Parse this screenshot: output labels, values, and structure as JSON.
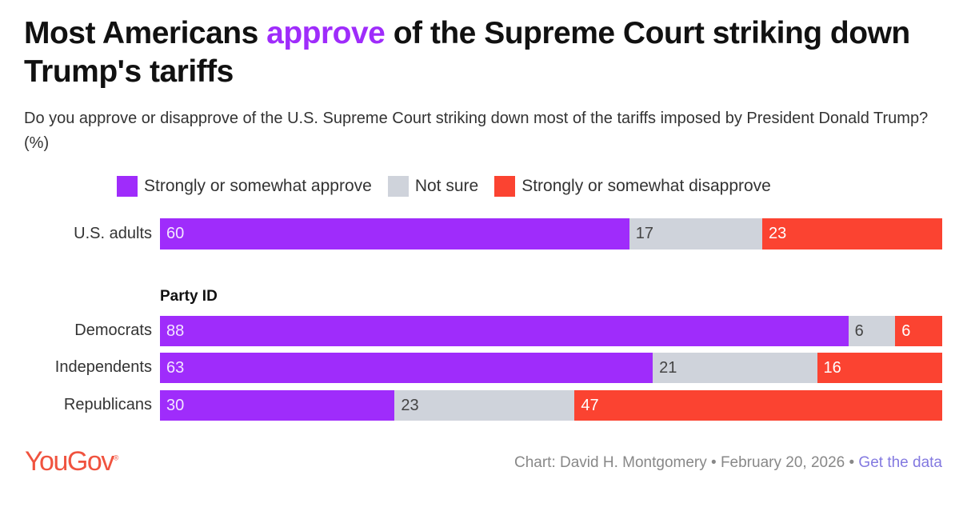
{
  "title_parts": {
    "before": "Most Americans ",
    "highlight": "approve",
    "after": " of the Supreme Court striking down Trump's tariffs"
  },
  "subtitle": "Do you approve or disapprove of the U.S. Supreme Court striking down most of the tariffs imposed by President Donald Trump? (%)",
  "colors": {
    "approve": "#9f2cfb",
    "not_sure": "#cfd3db",
    "disapprove": "#fb4331"
  },
  "chart_data": {
    "type": "bar",
    "orientation": "horizontal-stacked-100",
    "legend": [
      "Strongly or somewhat approve",
      "Not sure",
      "Strongly or somewhat disapprove"
    ],
    "legend_position": "top",
    "group_label": "Party ID",
    "categories": [
      "U.S. adults",
      "Democrats",
      "Independents",
      "Republicans"
    ],
    "series": [
      {
        "name": "Strongly or somewhat approve",
        "values": [
          60,
          88,
          63,
          30
        ]
      },
      {
        "name": "Not sure",
        "values": [
          17,
          6,
          21,
          23
        ]
      },
      {
        "name": "Strongly or somewhat disapprove",
        "values": [
          23,
          6,
          16,
          47
        ]
      }
    ],
    "xlim": [
      0,
      100
    ]
  },
  "footer": {
    "logo": "YouGov",
    "credit": "Chart: David H. Montgomery • February 20, 2026 • ",
    "link": "Get the data"
  }
}
